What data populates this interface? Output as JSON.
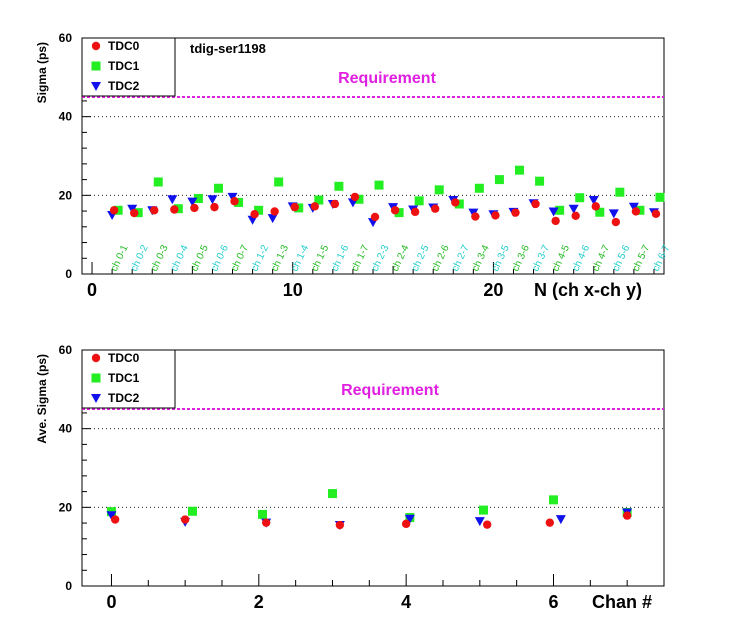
{
  "chart_data": [
    {
      "type": "scatter",
      "title": "tdig-ser1198",
      "xlabel": "N (ch x-ch y)",
      "ylabel": "Sigma (ps)",
      "xlim": [
        -0.5,
        28.5
      ],
      "ylim": [
        0,
        60
      ],
      "x_ticks": [
        "0",
        "10",
        "20"
      ],
      "y_ticks": [
        "0",
        "20",
        "40",
        "60"
      ],
      "grid": "horizontal dotted",
      "legend": "top-left",
      "requirement": {
        "label": "Requirement",
        "value": 45,
        "color": "#e020e0"
      },
      "pair_labels": [
        "ch 0-1",
        "ch 0-2",
        "ch 0-3",
        "ch 0-4",
        "ch 0-5",
        "ch 0-6",
        "ch 0-7",
        "ch 1-2",
        "ch 1-3",
        "ch 1-4",
        "ch 1-5",
        "ch 1-6",
        "ch 1-7",
        "ch 2-3",
        "ch 2-4",
        "ch 2-5",
        "ch 2-6",
        "ch 2-7",
        "ch 3-4",
        "ch 3-5",
        "ch 3-6",
        "ch 3-7",
        "ch 4-5",
        "ch 4-6",
        "ch 4-7",
        "ch 5-6",
        "ch 5-7",
        "ch 6-7"
      ],
      "pair_label_colors": [
        "#22bb22",
        "#22cccc"
      ],
      "series": [
        {
          "name": "TDC0",
          "marker": "circle",
          "color": "#ee1111",
          "dx": 0.1,
          "x": [
            1,
            2,
            3,
            4,
            5,
            6,
            7,
            8,
            9,
            10,
            11,
            12,
            13,
            14,
            15,
            16,
            17,
            18,
            19,
            20,
            21,
            22,
            23,
            24,
            25,
            26,
            27,
            28
          ],
          "y": [
            16.2,
            15.5,
            16.2,
            16.4,
            16.8,
            17.0,
            18.5,
            15.2,
            15.9,
            17.0,
            17.2,
            17.8,
            19.6,
            14.5,
            16.2,
            15.8,
            16.6,
            18.2,
            14.6,
            14.9,
            15.6,
            17.8,
            13.5,
            14.8,
            17.2,
            13.2,
            15.9,
            15.3
          ]
        },
        {
          "name": "TDC1",
          "marker": "square",
          "color": "#22ee22",
          "dx": 0.3,
          "x": [
            1,
            2,
            3,
            4,
            5,
            6,
            7,
            8,
            9,
            10,
            11,
            12,
            13,
            14,
            15,
            16,
            17,
            18,
            19,
            20,
            21,
            22,
            23,
            24,
            25,
            26,
            27,
            28
          ],
          "y": [
            16.2,
            15.6,
            23.4,
            16.6,
            19.2,
            21.8,
            18.2,
            16.2,
            23.4,
            16.8,
            18.8,
            22.3,
            19.0,
            22.6,
            15.6,
            18.6,
            21.4,
            17.8,
            21.8,
            24.0,
            26.4,
            23.6,
            16.2,
            19.4,
            15.7,
            20.8,
            16.2,
            19.5
          ]
        },
        {
          "name": "TDC2",
          "marker": "triangle",
          "color": "#1111ee",
          "dx": 0.0,
          "x": [
            1,
            2,
            3,
            4,
            5,
            6,
            7,
            8,
            9,
            10,
            11,
            12,
            13,
            14,
            15,
            16,
            17,
            18,
            19,
            20,
            21,
            22,
            23,
            24,
            25,
            26,
            27,
            28
          ],
          "y": [
            15.0,
            16.6,
            16.2,
            19.0,
            18.4,
            19.0,
            19.6,
            13.8,
            14.2,
            17.2,
            16.8,
            17.8,
            18.2,
            13.2,
            17.0,
            16.4,
            16.9,
            18.8,
            15.6,
            15.2,
            15.8,
            18.0,
            15.9,
            16.6,
            18.8,
            15.4,
            17.1,
            15.7
          ]
        }
      ]
    },
    {
      "type": "scatter",
      "xlabel": "Chan #",
      "ylabel": "Ave. Sigma (ps)",
      "xlim": [
        -0.4,
        7.5
      ],
      "ylim": [
        0,
        60
      ],
      "x_ticks": [
        "0",
        "2",
        "4",
        "6"
      ],
      "y_ticks": [
        "0",
        "20",
        "40",
        "60"
      ],
      "grid": "horizontal dotted",
      "legend": "top-left",
      "requirement": {
        "label": "Requirement",
        "value": 45,
        "color": "#e020e0"
      },
      "series": [
        {
          "name": "TDC0",
          "marker": "circle",
          "color": "#ee1111",
          "x": [
            0.05,
            1.0,
            2.1,
            3.1,
            4.0,
            5.1,
            5.95,
            7.0
          ],
          "y": [
            16.9,
            16.9,
            16.1,
            15.5,
            15.8,
            15.6,
            16.1,
            17.9
          ]
        },
        {
          "name": "TDC1",
          "marker": "square",
          "color": "#22ee22",
          "x": [
            0.0,
            1.1,
            2.05,
            3.0,
            4.05,
            5.05,
            6.0,
            7.0
          ],
          "y": [
            18.9,
            19.0,
            18.2,
            23.5,
            17.4,
            19.3,
            21.9,
            18.7
          ]
        },
        {
          "name": "TDC2",
          "marker": "triangle",
          "color": "#1111ee",
          "x": [
            0.0,
            1.0,
            2.1,
            3.1,
            4.05,
            5.0,
            6.1,
            7.0
          ],
          "y": [
            18.0,
            16.3,
            16.1,
            15.5,
            17.1,
            16.5,
            17.0,
            18.7
          ]
        }
      ]
    }
  ]
}
